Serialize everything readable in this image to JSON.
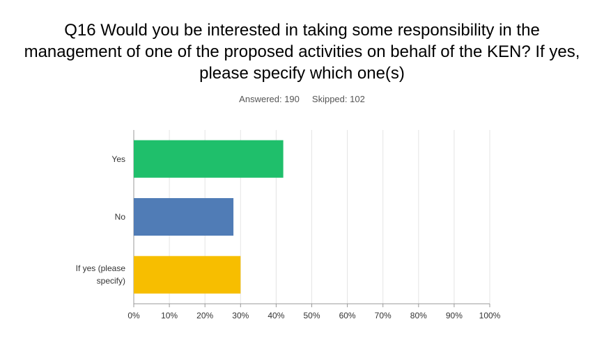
{
  "chart_data": {
    "type": "barh",
    "title": "Q16 Would you be interested in taking some responsibility in the management of one of the proposed activities on behalf of the KEN? If yes, please specify which one(s)",
    "answered": "Answered: 190",
    "skipped": "Skipped: 102",
    "categories": [
      "Yes",
      "No",
      "If yes (please specify)"
    ],
    "values": [
      42,
      28,
      30
    ],
    "colors": [
      "#1fbf6b",
      "#507cb6",
      "#f7be00"
    ],
    "xlim": [
      0,
      100
    ],
    "xticks": [
      {
        "value": 0,
        "label": "0%"
      },
      {
        "value": 10,
        "label": "10%"
      },
      {
        "value": 20,
        "label": "20%"
      },
      {
        "value": 30,
        "label": "30%"
      },
      {
        "value": 40,
        "label": "40%"
      },
      {
        "value": 50,
        "label": "50%"
      },
      {
        "value": 60,
        "label": "60%"
      },
      {
        "value": 70,
        "label": "70%"
      },
      {
        "value": 80,
        "label": "80%"
      },
      {
        "value": 90,
        "label": "90%"
      },
      {
        "value": 100,
        "label": "100%"
      }
    ],
    "grid": true
  }
}
